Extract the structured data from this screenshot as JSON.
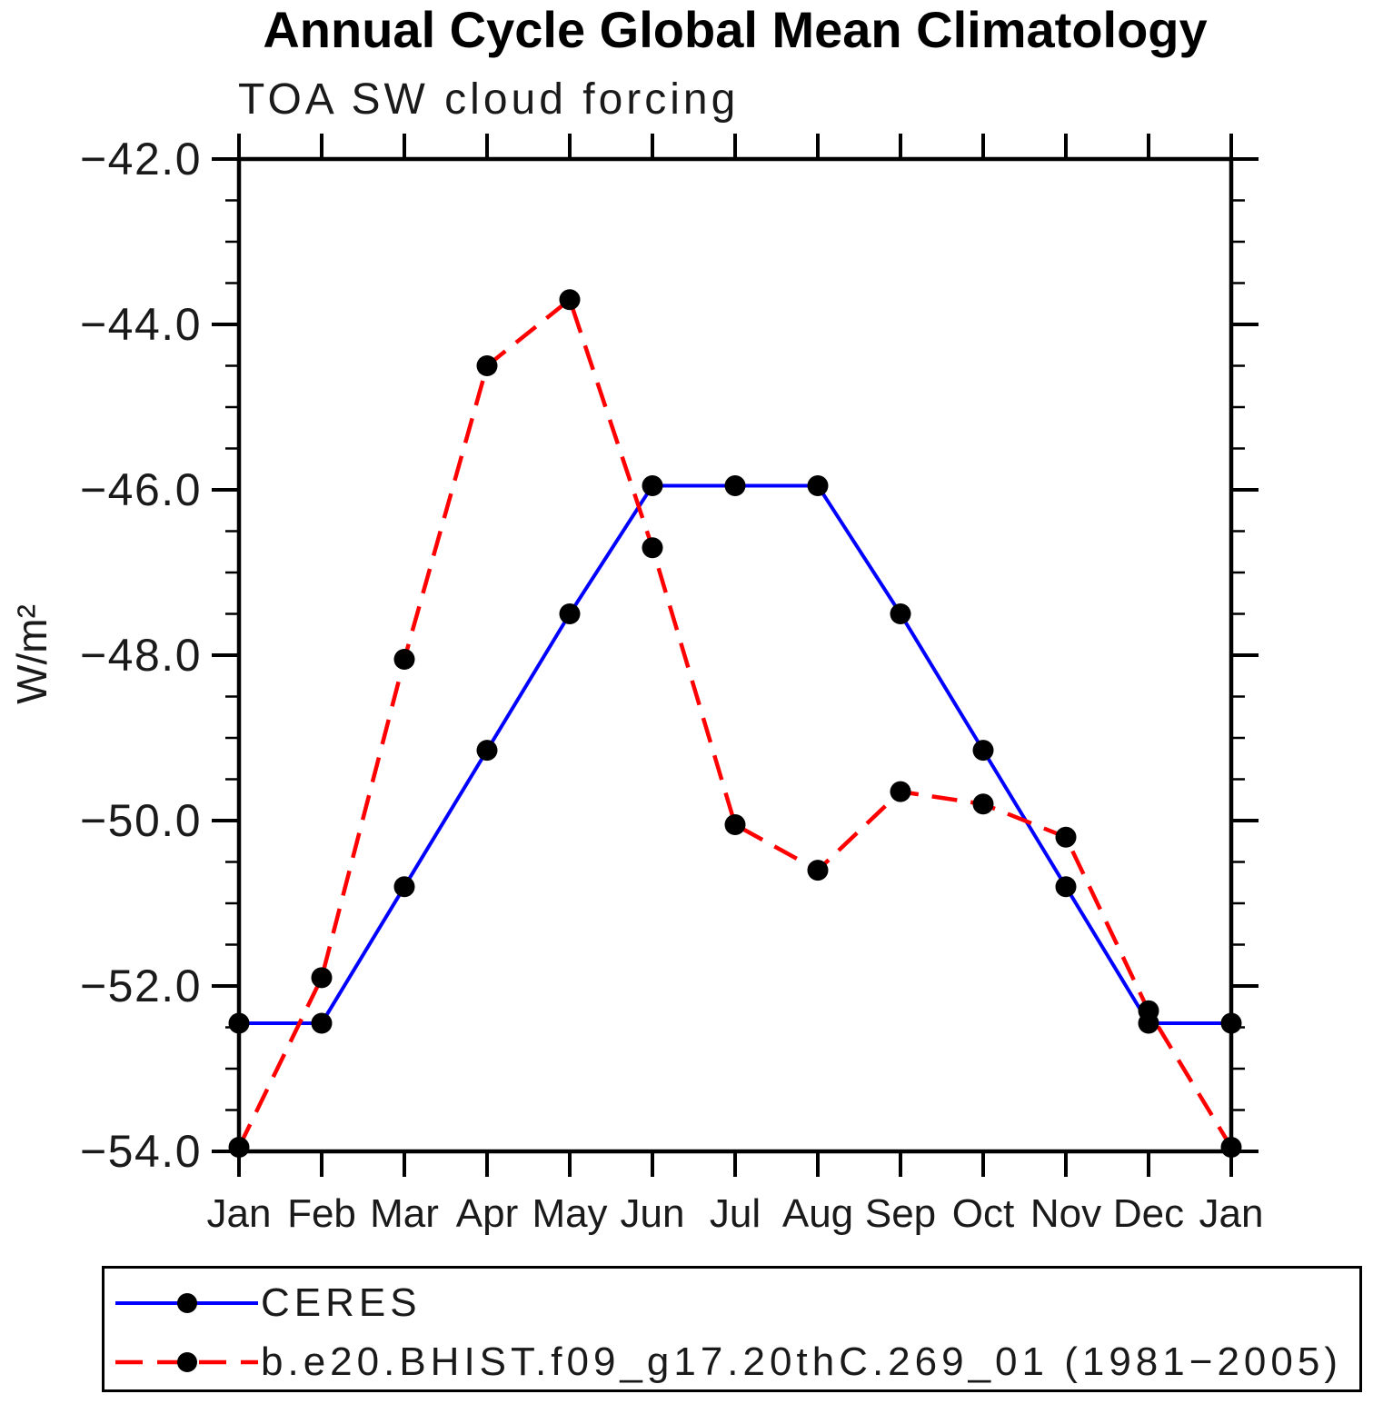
{
  "header": {
    "title": "Annual Cycle Global Mean Climatology",
    "subtitle": "TOA SW cloud forcing"
  },
  "chart_data": {
    "type": "line",
    "title": "Annual Cycle Global Mean Climatology",
    "subtitle": "TOA SW cloud forcing",
    "ylabel": "W/m²",
    "xlabel": "",
    "categories": [
      "Jan",
      "Feb",
      "Mar",
      "Apr",
      "May",
      "Jun",
      "Jul",
      "Aug",
      "Sep",
      "Oct",
      "Nov",
      "Dec",
      "Jan"
    ],
    "ylim": [
      -54.0,
      -42.0
    ],
    "ytick_major_step": 2.0,
    "ytick_minor_step": 0.5,
    "ytick_labels": [
      "−42.0",
      "−44.0",
      "−46.0",
      "−48.0",
      "−50.0",
      "−52.0",
      "−54.0"
    ],
    "grid": false,
    "legend_position": "bottom-left-box",
    "axis_color": "#000000",
    "marker_color": "#000000",
    "marker": "filled-circle",
    "series": [
      {
        "name": "CERES",
        "color": "#0000ff",
        "style": "solid",
        "values": [
          -52.45,
          -52.45,
          -50.8,
          -49.15,
          -47.5,
          -45.95,
          -45.95,
          -45.95,
          -47.5,
          -49.15,
          -50.8,
          -52.45,
          -52.45
        ]
      },
      {
        "name": "b.e20.BHIST.f09_g17.20thC.269_01 (1981−2005)",
        "color": "#ff0000",
        "style": "dashed",
        "values": [
          -53.95,
          -51.9,
          -48.05,
          -44.5,
          -43.7,
          -46.7,
          -50.05,
          -50.6,
          -49.65,
          -49.8,
          -50.2,
          -52.3,
          -53.95
        ]
      }
    ]
  }
}
